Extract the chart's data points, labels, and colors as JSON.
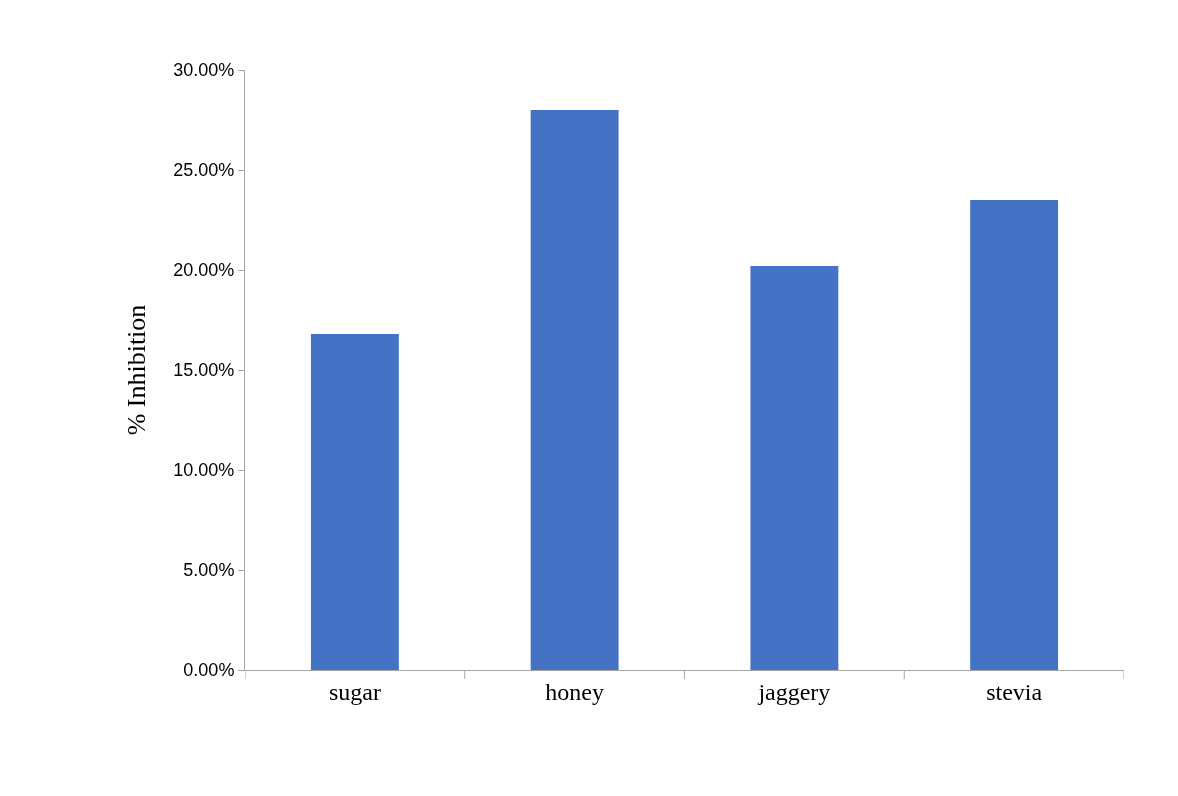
{
  "chart_data": {
    "type": "bar",
    "ylabel": "% Inhibition",
    "categories": [
      "sugar",
      "honey",
      "jaggery",
      "stevia"
    ],
    "values": [
      16.8,
      28.0,
      20.2,
      23.5
    ],
    "color": "#4472c4",
    "ylim": [
      0,
      30
    ],
    "yticks": [
      {
        "value": 0,
        "label": "0.00%"
      },
      {
        "value": 5,
        "label": "5.00%"
      },
      {
        "value": 10,
        "label": "10.00%"
      },
      {
        "value": 15,
        "label": "15.00%"
      },
      {
        "value": 20,
        "label": "20.00%"
      },
      {
        "value": 25,
        "label": "25.00%"
      },
      {
        "value": 30,
        "label": "30.00%"
      }
    ]
  }
}
